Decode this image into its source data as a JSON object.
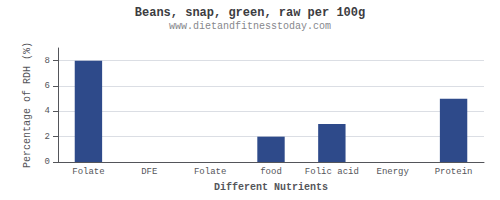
{
  "chart_data": {
    "type": "bar",
    "title": "Beans, snap, green, raw per 100g",
    "subtitle": "www.dietandfitnesstoday.com",
    "xlabel": "Different Nutrients",
    "ylabel": "Percentage of RDH (%)",
    "categories": [
      "Folate",
      "DFE",
      "Folate",
      "food",
      "Folic acid",
      "Energy",
      "Protein"
    ],
    "values": [
      8.0,
      0.0,
      0.0,
      2.0,
      3.0,
      0.0,
      5.0
    ],
    "color": "#2e4a8a",
    "ylim": [
      0,
      9
    ],
    "yticks": [
      0,
      2,
      4,
      6,
      8
    ],
    "grid": true
  }
}
